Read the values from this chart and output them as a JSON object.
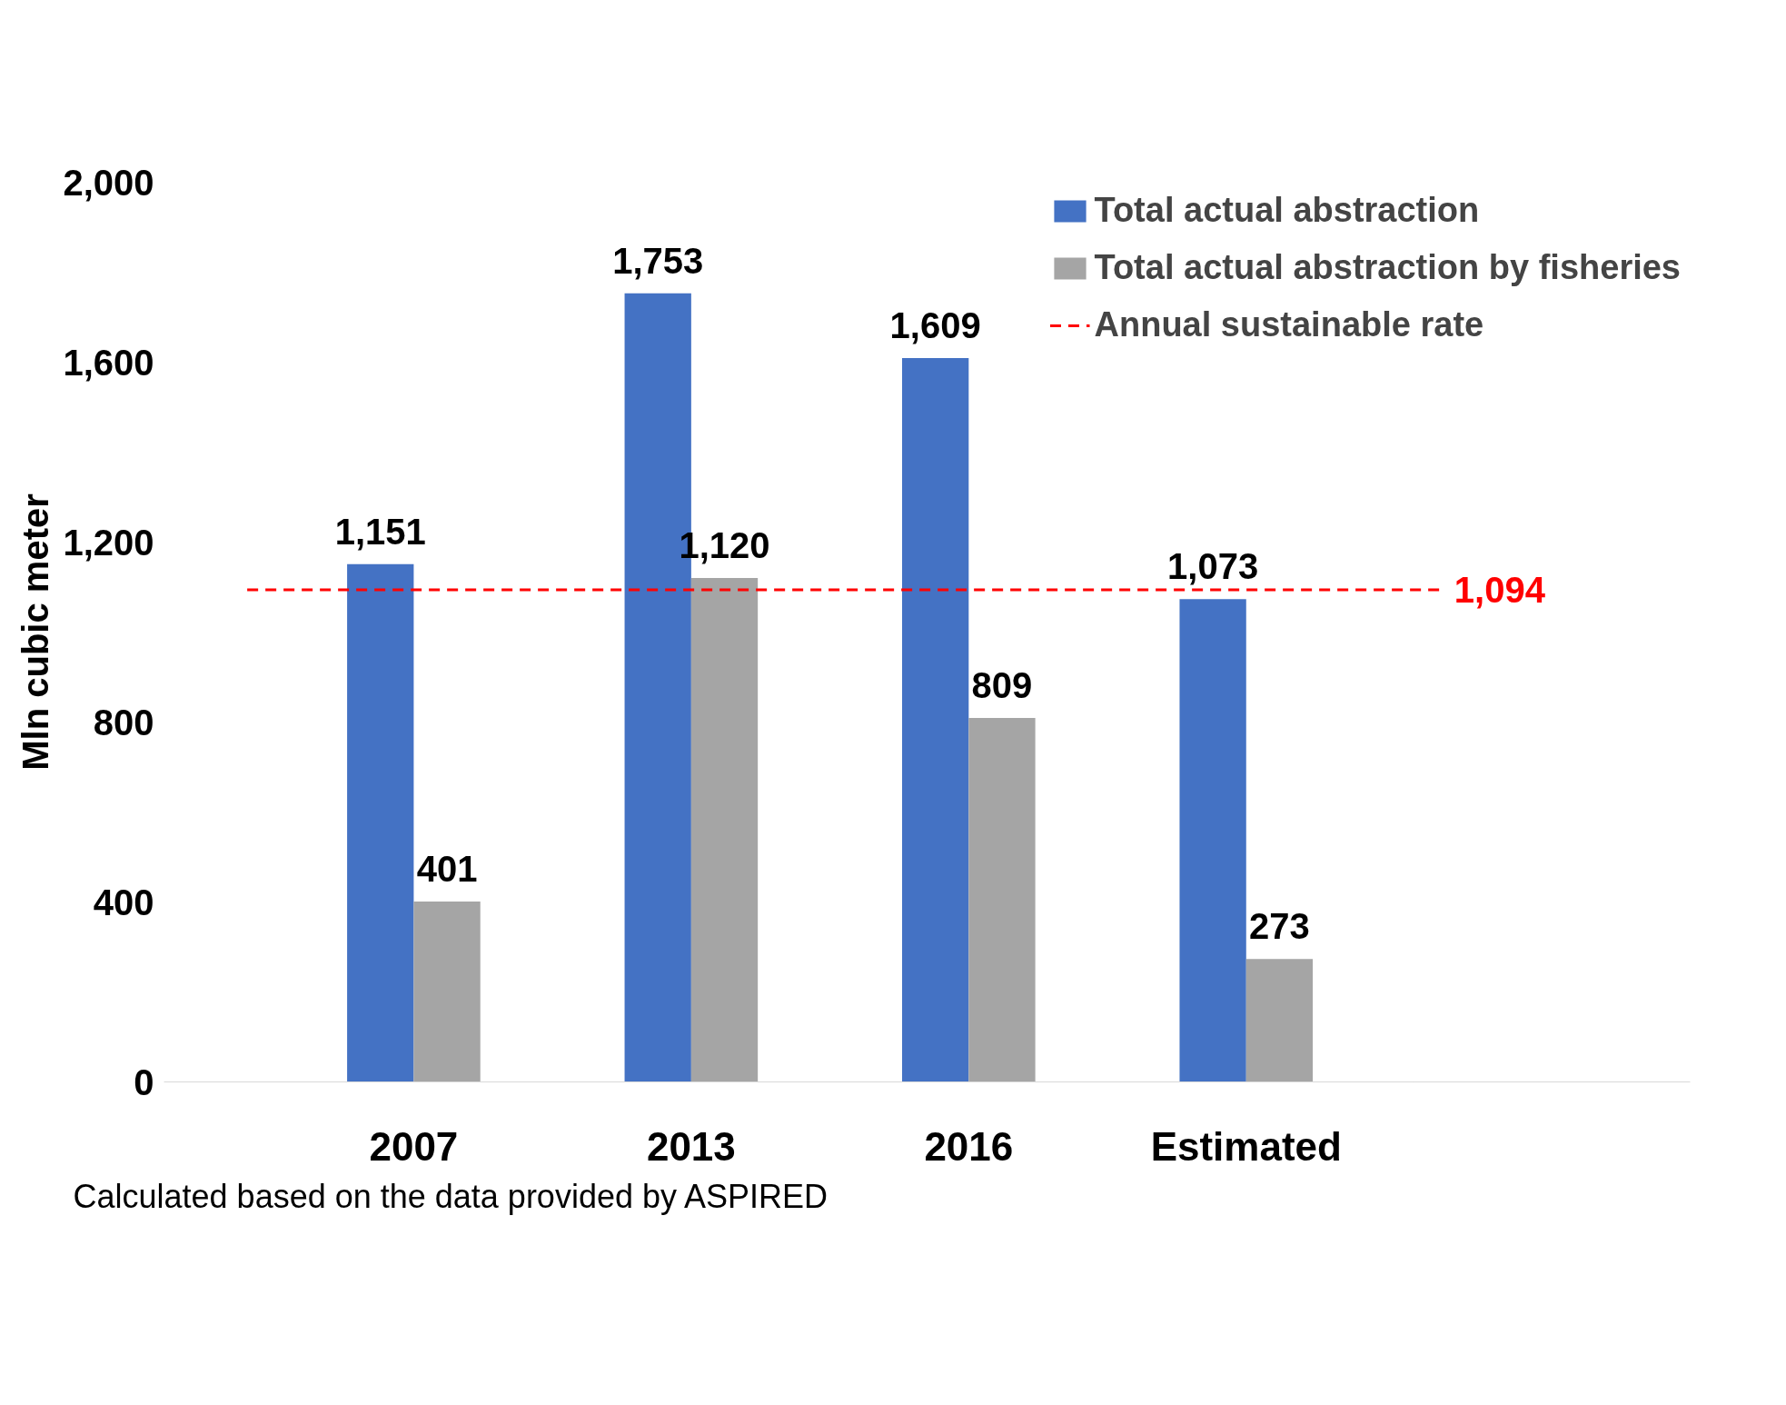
{
  "chart_data": {
    "type": "bar",
    "categories": [
      "2007",
      "2013",
      "2016",
      "Estimated"
    ],
    "series": [
      {
        "name": "Total actual abstraction",
        "color": "#4472c4",
        "values": [
          1151,
          1753,
          1609,
          1073
        ],
        "value_labels": [
          "1,151",
          "1,753",
          "1,609",
          "1,073"
        ]
      },
      {
        "name": "Total actual abstraction by fisheries",
        "color": "#a5a5a5",
        "values": [
          401,
          1120,
          809,
          273
        ],
        "value_labels": [
          "401",
          "1,120",
          "809",
          "273"
        ]
      }
    ],
    "ylabel": "Mln cubic meter",
    "ylim": [
      0,
      2000
    ],
    "yticks": [
      0,
      {
        "value": 400,
        "label": "400"
      },
      {
        "value": 800,
        "label": "800"
      },
      {
        "value": 1200,
        "label": "1,200"
      },
      {
        "value": 1600,
        "label": "1,600"
      },
      {
        "value": 2000,
        "label": "2,000"
      }
    ],
    "ref_lines": [
      {
        "axis": "y",
        "value": 1094,
        "label": "Annual sustainable rate",
        "color": "#ff0000",
        "line_style": "dashed"
      }
    ],
    "annotations": [
      "1,094",
      "Calculated based on the data provided by ASPIRED"
    ],
    "grid": false,
    "legend": "top right"
  }
}
